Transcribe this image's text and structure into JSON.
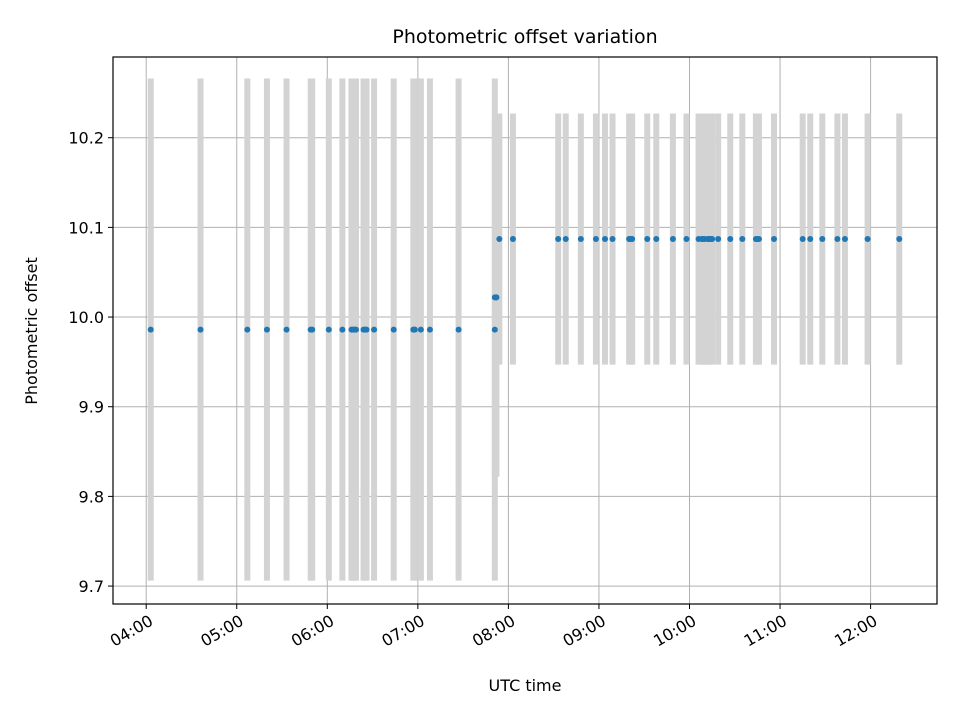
{
  "chart_data": {
    "type": "scatter",
    "title": "Photometric offset variation",
    "xlabel": "UTC time",
    "ylabel": "Photometric offset",
    "x_is_time": true,
    "xlim": [
      "03:38",
      "12:44"
    ],
    "ylim": [
      9.68,
      10.29
    ],
    "xticks": [
      "04:00",
      "05:00",
      "06:00",
      "07:00",
      "08:00",
      "09:00",
      "10:00",
      "11:00",
      "12:00"
    ],
    "yticks": [
      9.7,
      9.8,
      9.9,
      10.0,
      10.1,
      10.2
    ],
    "ytick_labels": [
      "9.7",
      "9.8",
      "9.9",
      "10.0",
      "10.1",
      "10.2"
    ],
    "grid": true,
    "colors": {
      "points": "#1f77b4",
      "errorbars": "#d3d3d3",
      "grid": "#b0b0b0"
    },
    "series": [
      {
        "x": [
          "04:03",
          "04:36",
          "05:07",
          "05:20",
          "05:33",
          "05:49",
          "05:50",
          "06:01",
          "06:10",
          "06:16",
          "06:17",
          "06:18",
          "06:19",
          "06:24",
          "06:25",
          "06:26",
          "06:31",
          "06:44",
          "06:57",
          "06:58",
          "07:02",
          "07:08",
          "07:27",
          "07:51",
          "07:51",
          "07:52",
          "07:52"
        ],
        "y": [
          9.986,
          9.986,
          9.986,
          9.986,
          9.986,
          9.986,
          9.986,
          9.986,
          9.986,
          9.986,
          9.986,
          9.986,
          9.986,
          9.986,
          9.986,
          9.986,
          9.986,
          9.986,
          9.986,
          9.986,
          9.986,
          9.986,
          9.986,
          9.986,
          10.022,
          10.022,
          10.022
        ],
        "yerr": [
          0.28,
          0.28,
          0.28,
          0.28,
          0.28,
          0.28,
          0.28,
          0.28,
          0.28,
          0.28,
          0.28,
          0.28,
          0.28,
          0.28,
          0.28,
          0.28,
          0.28,
          0.28,
          0.28,
          0.28,
          0.28,
          0.28,
          0.28,
          0.28,
          0.2,
          0.2,
          0.2
        ]
      },
      {
        "x": [
          "07:54",
          "08:03",
          "08:33",
          "08:38",
          "08:48",
          "08:58",
          "09:04",
          "09:09",
          "09:20",
          "09:21",
          "09:22",
          "09:32",
          "09:38",
          "09:49",
          "09:58",
          "10:06",
          "10:08",
          "10:09",
          "10:10",
          "10:12",
          "10:13",
          "10:14",
          "10:15",
          "10:19",
          "10:27",
          "10:35",
          "10:44",
          "10:45",
          "10:46",
          "10:56",
          "11:15",
          "11:20",
          "11:28",
          "11:38",
          "11:43",
          "11:58",
          "12:19"
        ],
        "y": [
          10.087,
          10.087,
          10.087,
          10.087,
          10.087,
          10.087,
          10.087,
          10.087,
          10.087,
          10.087,
          10.087,
          10.087,
          10.087,
          10.087,
          10.087,
          10.087,
          10.087,
          10.087,
          10.087,
          10.087,
          10.087,
          10.087,
          10.087,
          10.087,
          10.087,
          10.087,
          10.087,
          10.087,
          10.087,
          10.087,
          10.087,
          10.087,
          10.087,
          10.087,
          10.087,
          10.087,
          10.087
        ],
        "yerr": [
          0.14,
          0.14,
          0.14,
          0.14,
          0.14,
          0.14,
          0.14,
          0.14,
          0.14,
          0.14,
          0.14,
          0.14,
          0.14,
          0.14,
          0.14,
          0.14,
          0.14,
          0.14,
          0.14,
          0.14,
          0.14,
          0.14,
          0.14,
          0.14,
          0.14,
          0.14,
          0.14,
          0.14,
          0.14,
          0.14,
          0.14,
          0.14,
          0.14,
          0.14,
          0.14,
          0.14,
          0.14
        ]
      }
    ]
  }
}
